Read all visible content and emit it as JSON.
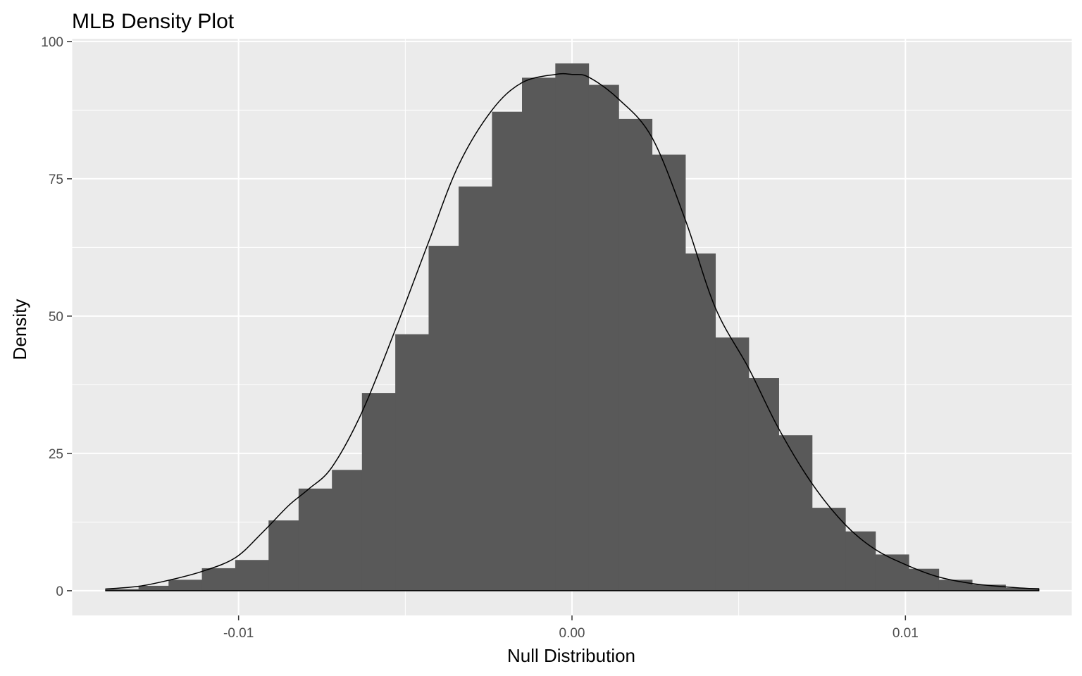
{
  "chart_data": {
    "type": "bar",
    "title": "MLB Density Plot",
    "xlabel": "Null Distribution",
    "ylabel": "Density",
    "xlim": [
      -0.015,
      0.015
    ],
    "ylim": [
      -4.5,
      100.5
    ],
    "x_ticks": [
      -0.01,
      0.0,
      0.01
    ],
    "x_tick_labels": [
      "-0.01",
      "0.00",
      "0.01"
    ],
    "y_ticks": [
      0,
      25,
      50,
      75,
      100
    ],
    "y_tick_labels": [
      "0",
      "25",
      "50",
      "75",
      "100"
    ],
    "grid": true,
    "panel_background": "#ebebeb",
    "bar_fill": "#595959",
    "line_color": "#000000",
    "histogram": {
      "bin_edges": [
        -0.014,
        -0.013,
        -0.0121,
        -0.0111,
        -0.0101,
        -0.0091,
        -0.0082,
        -0.0072,
        -0.0063,
        -0.0053,
        -0.0043,
        -0.0034,
        -0.0024,
        -0.0015,
        -0.0005,
        0.0005,
        0.0014,
        0.0024,
        0.0034,
        0.0043,
        0.0053,
        0.0062,
        0.0072,
        0.0082,
        0.0091,
        0.0101,
        0.011,
        0.012,
        0.013,
        0.014
      ],
      "values": [
        0.3,
        0.9,
        2.0,
        4.1,
        5.6,
        12.8,
        18.6,
        22.0,
        36.0,
        46.7,
        62.8,
        73.6,
        87.2,
        93.4,
        96.0,
        92.1,
        85.9,
        79.4,
        61.4,
        46.1,
        38.7,
        28.3,
        15.1,
        10.8,
        6.6,
        4.0,
        2.0,
        1.1,
        0.5
      ]
    },
    "density": {
      "x": [
        -0.014,
        -0.013,
        -0.0121,
        -0.0111,
        -0.0101,
        -0.0093,
        -0.0085,
        -0.0079,
        -0.0072,
        -0.0063,
        -0.0053,
        -0.0043,
        -0.0034,
        -0.0024,
        -0.0015,
        -0.0005,
        0.0,
        0.0005,
        0.0014,
        0.0024,
        0.0034,
        0.0043,
        0.0053,
        0.0062,
        0.0072,
        0.0082,
        0.0091,
        0.0101,
        0.011,
        0.012,
        0.013,
        0.014
      ],
      "y": [
        0.3,
        0.8,
        1.9,
        3.5,
        6.0,
        10.5,
        15.5,
        18.5,
        22.5,
        32.5,
        47.5,
        63.5,
        77.5,
        87.5,
        92.5,
        94.0,
        94.0,
        93.5,
        89.5,
        82.5,
        67.5,
        51.5,
        40.5,
        29.5,
        19.5,
        12.0,
        7.5,
        4.5,
        2.5,
        1.3,
        0.7,
        0.3
      ]
    }
  }
}
